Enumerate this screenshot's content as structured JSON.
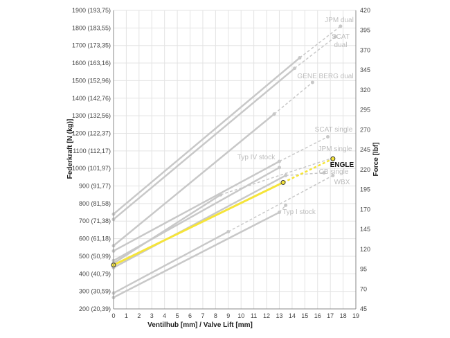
{
  "chart_data": {
    "type": "line",
    "xlabel": "Ventilhub [mm] / Valve Lift [mm]",
    "ylabel_left": "Federkraft [N (kg)]",
    "ylabel_right": "Force [lbf]",
    "xlim": [
      0,
      19
    ],
    "ylim": [
      200,
      1900
    ],
    "ylim_right": [
      45,
      420
    ],
    "x_ticks": [
      "0",
      "1",
      "2",
      "3",
      "4",
      "5",
      "6",
      "7",
      "8",
      "9",
      "10",
      "11",
      "12",
      "13",
      "14",
      "15",
      "16",
      "17",
      "18",
      "19"
    ],
    "y_left_ticks": [
      {
        "value": 200,
        "label": "200 (20,39)"
      },
      {
        "value": 300,
        "label": "300 (30,59)"
      },
      {
        "value": 400,
        "label": "400 (40,79)"
      },
      {
        "value": 500,
        "label": "500 (50,99)"
      },
      {
        "value": 600,
        "label": "600 (61,18)"
      },
      {
        "value": 700,
        "label": "700 (71,38)"
      },
      {
        "value": 800,
        "label": "800 (81,58)"
      },
      {
        "value": 900,
        "label": "900 (91,77)"
      },
      {
        "value": 1000,
        "label": "1000 (101,97)"
      },
      {
        "value": 1100,
        "label": "1100 (112,17)"
      },
      {
        "value": 1200,
        "label": "1200 (122,37)"
      },
      {
        "value": 1300,
        "label": "1300 (132,56)"
      },
      {
        "value": 1400,
        "label": "1400 (142,76)"
      },
      {
        "value": 1500,
        "label": "1500 (152,96)"
      },
      {
        "value": 1600,
        "label": "1600 (163,16)"
      },
      {
        "value": 1700,
        "label": "1700 (173,35)"
      },
      {
        "value": 1800,
        "label": "1800 (183,55)"
      },
      {
        "value": 1900,
        "label": "1900 (193,75)"
      }
    ],
    "y_right_ticks": [
      "45",
      "70",
      "95",
      "120",
      "145",
      "170",
      "195",
      "220",
      "245",
      "270",
      "295",
      "320",
      "345",
      "370",
      "395",
      "420"
    ],
    "grid": true,
    "highlight_color": "#f5e43a",
    "series_color": "#c8c8c8",
    "series": [
      {
        "name": "JPM dual",
        "label": "JPM dual",
        "points": [
          [
            0,
            740
          ],
          [
            14.6,
            1630
          ]
        ],
        "dashed_to": [
          17.8,
          1810
        ]
      },
      {
        "name": "SCAT dual",
        "label": "SCAT dual",
        "points": [
          [
            0,
            710
          ],
          [
            14.2,
            1570
          ]
        ],
        "dashed_to": [
          17.4,
          1750
        ]
      },
      {
        "name": "GENE BERG dual",
        "label": "GENE BERG dual",
        "points": [
          [
            0,
            560
          ],
          [
            12.6,
            1310
          ]
        ],
        "dashed_to": [
          15.6,
          1490
        ]
      },
      {
        "name": "SCAT single",
        "label": "SCAT single",
        "points": [
          [
            0,
            530
          ],
          [
            13,
            1040
          ]
        ],
        "dashed_to": [
          16.8,
          1180
        ]
      },
      {
        "name": "Typ IV stock",
        "label": "Typ IV stock",
        "points": [
          [
            0,
            475
          ],
          [
            13,
            1005
          ]
        ],
        "dashed_to": null
      },
      {
        "name": "JPM single",
        "label": "JPM single",
        "points": [
          [
            0,
            460
          ],
          [
            8.4,
            850
          ]
        ],
        "dashed_to": [
          17.2,
          1060
        ]
      },
      {
        "name": "ENGLE",
        "label": "ENGLE",
        "highlight": true,
        "points": [
          [
            0,
            450
          ],
          [
            13.3,
            920
          ]
        ],
        "dashed_to": [
          17.2,
          1055
        ]
      },
      {
        "name": "CB single",
        "label": "CB single",
        "points": [
          [
            0,
            435
          ],
          [
            13.5,
            960
          ]
        ],
        "dashed_to": [
          16.5,
          975
        ]
      },
      {
        "name": "WBX",
        "label": "WBX",
        "points": [
          [
            0,
            290
          ],
          [
            9,
            640
          ]
        ],
        "dashed_to": [
          17.2,
          960
        ]
      },
      {
        "name": "Typ I stock",
        "label": "Typ I stock",
        "points": [
          [
            0,
            265
          ],
          [
            13,
            750
          ]
        ],
        "dashed_to": [
          13.5,
          790
        ]
      }
    ]
  }
}
